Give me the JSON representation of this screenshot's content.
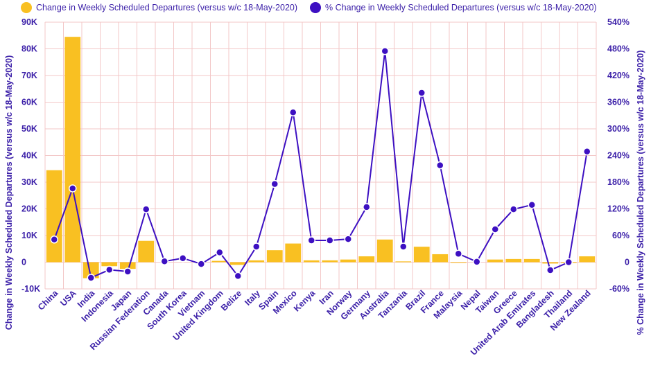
{
  "chart_data": {
    "type": "bar",
    "categories": [
      "China",
      "USA",
      "India",
      "Indonesia",
      "Japan",
      "Russian Federation",
      "Canada",
      "South Korea",
      "Vietnam",
      "United Kingdom",
      "Belize",
      "Italy",
      "Spain",
      "Mexico",
      "Kenya",
      "Iran",
      "Norway",
      "Germany",
      "Australia",
      "Tanzania",
      "Brazil",
      "France",
      "Malaysia",
      "Nepal",
      "Taiwan",
      "Greece",
      "United Arab Emirates",
      "Bangladesh",
      "Thailand",
      "New Zealand"
    ],
    "series": [
      {
        "name": "Change in Weekly Scheduled Departures (versus w/c 18-May-2020)",
        "type": "bar",
        "axis": "left",
        "color": "#f9c022",
        "values": [
          34500,
          84500,
          -6000,
          -1500,
          -2500,
          8000,
          0,
          0,
          0,
          500,
          -1000,
          700,
          4500,
          7000,
          700,
          700,
          1000,
          2200,
          8500,
          300,
          5800,
          3000,
          -200,
          0,
          1000,
          1200,
          1200,
          -500,
          -300,
          2200
        ]
      },
      {
        "name": "% Change in Weekly Scheduled Departures (versus w/c 18-May-2020)",
        "type": "line",
        "axis": "right",
        "color": "#3d10c2",
        "values": [
          51,
          166,
          -35,
          -17,
          -21,
          119,
          2,
          9,
          -4,
          22,
          -31,
          35,
          176,
          337,
          49,
          49,
          52,
          124,
          475,
          35,
          381,
          218,
          19,
          1,
          74,
          119,
          129,
          -18,
          0,
          249
        ]
      }
    ],
    "y_left": {
      "label": "Change in Weekly Scheduled Departures (versus w/c 18-May-2020)",
      "range": [
        -10000,
        90000
      ],
      "ticks": [
        -10000,
        0,
        10000,
        20000,
        30000,
        40000,
        50000,
        60000,
        70000,
        80000,
        90000
      ],
      "tick_labels": [
        "-10K",
        "0",
        "10K",
        "20K",
        "30K",
        "40K",
        "50K",
        "60K",
        "70K",
        "80K",
        "90K"
      ]
    },
    "y_right": {
      "label": "% Change in Weekly Scheduled Departures (versus w/c 18-May-2020)",
      "range": [
        -60,
        540
      ],
      "ticks": [
        -60,
        0,
        60,
        120,
        180,
        240,
        300,
        360,
        420,
        480,
        540
      ],
      "tick_labels": [
        "-60%",
        "0",
        "60%",
        "120%",
        "180%",
        "240%",
        "300%",
        "360%",
        "420%",
        "480%",
        "540%"
      ]
    },
    "grid": true,
    "legend_position": "top-left"
  }
}
